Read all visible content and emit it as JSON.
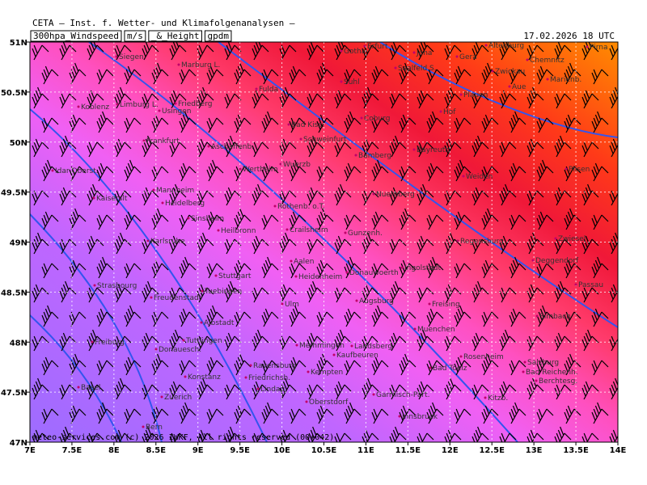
{
  "header": {
    "institute": "CETA – Inst. f. Wetter- und Klimafolgenanalysen –",
    "title_parts": [
      "300hpa_Windspeed",
      "m/s",
      "_&_Height",
      "gpdm"
    ],
    "valid_time": "17.02.2026 18 UTC"
  },
  "map": {
    "xticks": [
      {
        "value": 7,
        "label": "7E"
      },
      {
        "value": 7.5,
        "label": "7.5E"
      },
      {
        "value": 8,
        "label": "8E"
      },
      {
        "value": 8.5,
        "label": "8.5E"
      },
      {
        "value": 9,
        "label": "9E"
      },
      {
        "value": 9.5,
        "label": "9.5E"
      },
      {
        "value": 10,
        "label": "10E"
      },
      {
        "value": 10.5,
        "label": "10.5E"
      },
      {
        "value": 11,
        "label": "11E"
      },
      {
        "value": 11.5,
        "label": "11.5E"
      },
      {
        "value": 12,
        "label": "12E"
      },
      {
        "value": 12.5,
        "label": "12.5E"
      },
      {
        "value": 13,
        "label": "13E"
      },
      {
        "value": 13.5,
        "label": "13.5E"
      },
      {
        "value": 14,
        "label": "14E"
      }
    ],
    "yticks": [
      {
        "value": 47,
        "label": "47N"
      },
      {
        "value": 47.5,
        "label": "47.5N"
      },
      {
        "value": 48,
        "label": "48N"
      },
      {
        "value": 48.5,
        "label": "48.5N"
      },
      {
        "value": 49,
        "label": "49N"
      },
      {
        "value": 49.5,
        "label": "49.5N"
      },
      {
        "value": 50,
        "label": "50N"
      },
      {
        "value": 50.5,
        "label": "50.5N"
      },
      {
        "value": 51,
        "label": "51N"
      }
    ],
    "cities": [
      "Siegen",
      "Marburg L.",
      "Fulda",
      "Gotha",
      "Erfurt",
      "Jena",
      "Gera",
      "Altenburg",
      "Chemnitz",
      "Pirna",
      "Zwickau",
      "Aue",
      "Marienb.",
      "Saalfeld S.",
      "Suhl",
      "Koblenz",
      "Limburg L.",
      "Usingen",
      "Friedberg",
      "Plauen",
      "Hof",
      "Coburg",
      "Bad Kiss.",
      "Frankfurt",
      "Aschaffenb.",
      "Schweinfurt",
      "Bayreuth",
      "Idar-Oberst.",
      "Wuerzb",
      "Bamberg",
      "Weiden",
      "Plisen",
      "Mannheim",
      "Heidelberg",
      "Kaiserslt",
      "Wertheim",
      "Nuernberg",
      "Sinsheim",
      "Rothenb. o.T.",
      "Heilbronn",
      "Crailsheim",
      "Gunzenh.",
      "Regensburg",
      "Karlsruhe",
      "Zwiesel",
      "Aalen",
      "Heidenheim",
      "Donauwoerth",
      "Ingolstadt",
      "Deggendorf",
      "Stuttgart",
      "Passau",
      "Strasbourg",
      "Tuebingen",
      "Freudenstadt",
      "Ulm",
      "Augsburg",
      "Freising",
      "Albstadt",
      "Muenchen",
      "Simbach",
      "Freiburg",
      "Tuttlingen",
      "Donauesch.",
      "Memmingen",
      "Landsberg",
      "Kaufbeuren",
      "Bad Toelz",
      "Rosenheim",
      "Salzburg",
      "Bad Reichenh.",
      "Berchtesg.",
      "Ravensburg",
      "Konstanz",
      "Friedrichsh.",
      "Kempten",
      "Lindau",
      "Basel",
      "Zuerich",
      "Oberstdorf",
      "Garmisch-Part.",
      "Kitzb.",
      "Innsbruck",
      "Bern"
    ],
    "copyright": "meteo-services.com (c) 2026 IWKF, All rights reserved (00+042)"
  }
}
